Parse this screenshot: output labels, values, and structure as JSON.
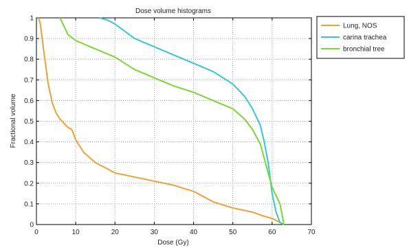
{
  "chart_data": {
    "type": "line",
    "title": "Dose volume histograms",
    "xlabel": "Dose (Gy)",
    "ylabel": "Fractional volume",
    "xlim": [
      0,
      70
    ],
    "ylim": [
      0,
      1
    ],
    "xticks": [
      "0",
      "10",
      "20",
      "30",
      "40",
      "50",
      "60",
      "70"
    ],
    "yticks": [
      "0",
      "0.1",
      "0.2",
      "0.3",
      "0.4",
      "0.5",
      "0.6",
      "0.7",
      "0.8",
      "0.9",
      "1"
    ],
    "grid": true,
    "legend_position": "outside-top-right",
    "series": [
      {
        "name": "Lung, NOS",
        "color": "#F0A030",
        "points": [
          [
            0.5,
            1.0
          ],
          [
            1,
            0.97
          ],
          [
            2,
            0.82
          ],
          [
            3,
            0.68
          ],
          [
            4,
            0.59
          ],
          [
            5,
            0.54
          ],
          [
            6,
            0.51
          ],
          [
            7,
            0.49
          ],
          [
            8,
            0.47
          ],
          [
            9,
            0.46
          ],
          [
            10,
            0.41
          ],
          [
            12,
            0.35
          ],
          [
            15,
            0.3
          ],
          [
            20,
            0.25
          ],
          [
            25,
            0.23
          ],
          [
            30,
            0.21
          ],
          [
            35,
            0.19
          ],
          [
            40,
            0.16
          ],
          [
            45,
            0.11
          ],
          [
            50,
            0.08
          ],
          [
            55,
            0.06
          ],
          [
            58,
            0.04
          ],
          [
            60,
            0.03
          ],
          [
            61,
            0.02
          ],
          [
            62,
            0.01
          ],
          [
            63,
            0.0
          ]
        ]
      },
      {
        "name": "carina trachea",
        "color": "#30C8D8",
        "points": [
          [
            16,
            1.0
          ],
          [
            18,
            0.99
          ],
          [
            20,
            0.97
          ],
          [
            25,
            0.9
          ],
          [
            30,
            0.86
          ],
          [
            35,
            0.82
          ],
          [
            40,
            0.78
          ],
          [
            45,
            0.74
          ],
          [
            50,
            0.68
          ],
          [
            53,
            0.62
          ],
          [
            55,
            0.56
          ],
          [
            57,
            0.48
          ],
          [
            58,
            0.4
          ],
          [
            59,
            0.3
          ],
          [
            60,
            0.15
          ],
          [
            61,
            0.06
          ],
          [
            62,
            0.01
          ],
          [
            63,
            0.0
          ]
        ]
      },
      {
        "name": "bronchial tree",
        "color": "#78D830",
        "points": [
          [
            6,
            1.0
          ],
          [
            7,
            0.96
          ],
          [
            8,
            0.92
          ],
          [
            10,
            0.89
          ],
          [
            15,
            0.85
          ],
          [
            20,
            0.81
          ],
          [
            25,
            0.75
          ],
          [
            30,
            0.71
          ],
          [
            35,
            0.67
          ],
          [
            40,
            0.64
          ],
          [
            45,
            0.6
          ],
          [
            50,
            0.56
          ],
          [
            53,
            0.51
          ],
          [
            55,
            0.46
          ],
          [
            57,
            0.39
          ],
          [
            58,
            0.32
          ],
          [
            59,
            0.25
          ],
          [
            60,
            0.18
          ],
          [
            61,
            0.14
          ],
          [
            62,
            0.1
          ],
          [
            63,
            0.0
          ]
        ]
      }
    ]
  }
}
